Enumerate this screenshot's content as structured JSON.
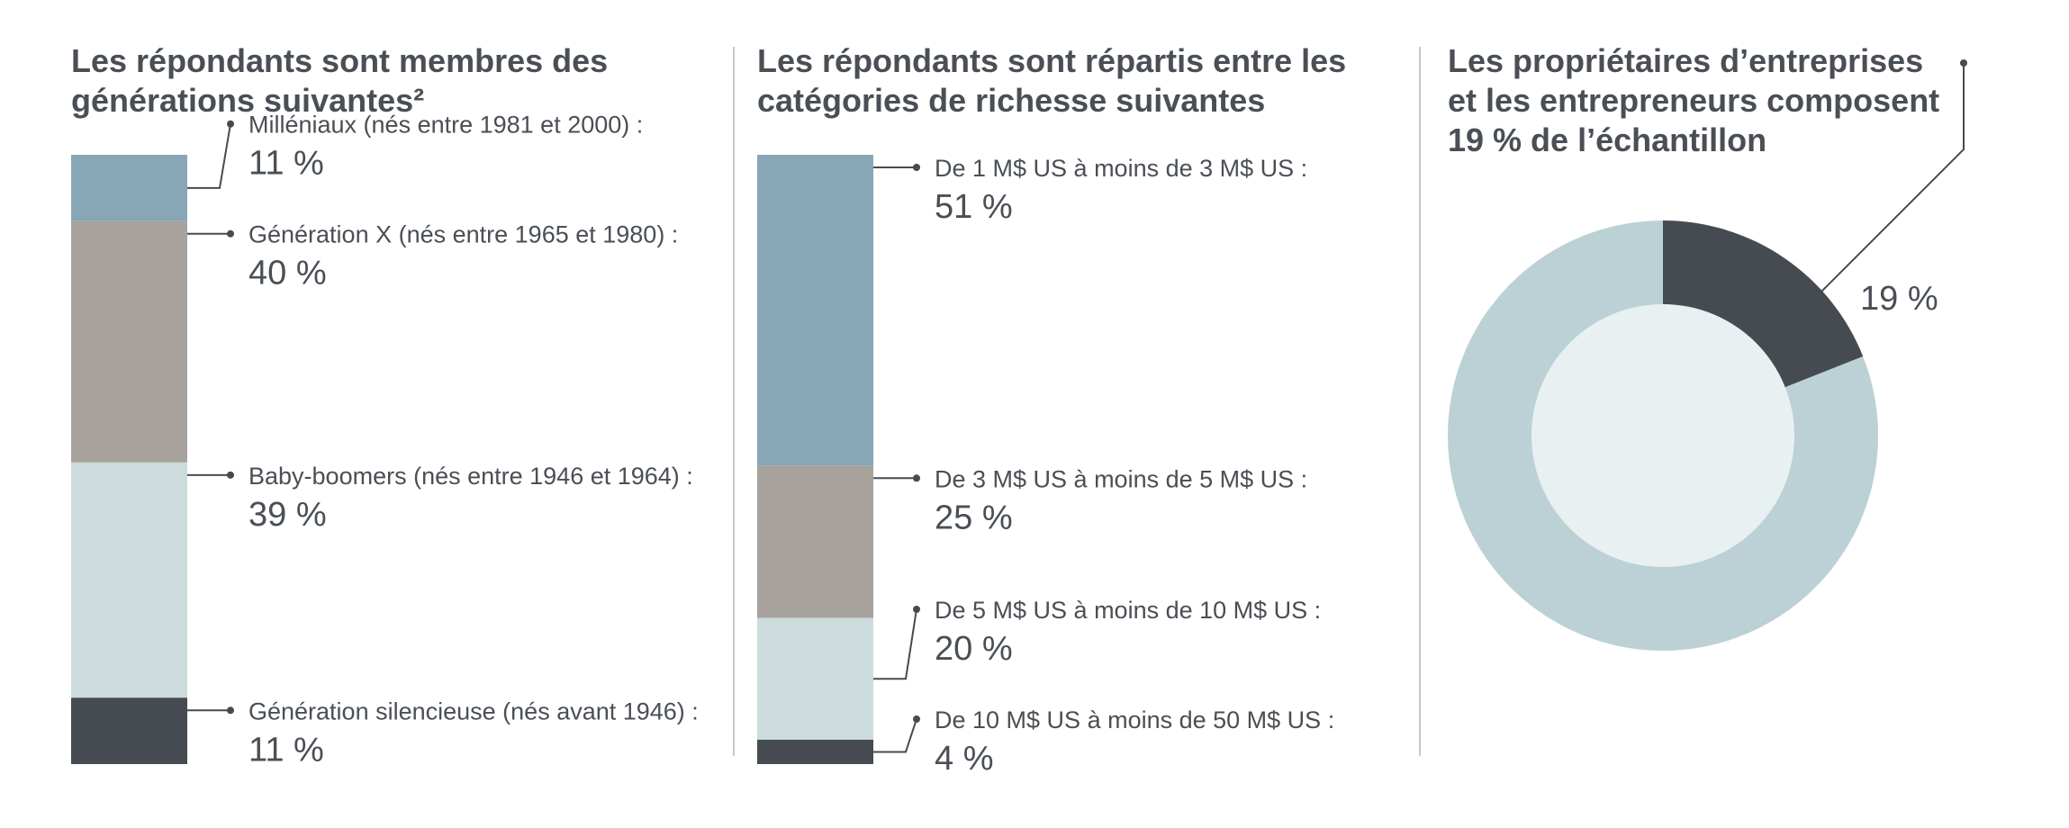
{
  "chart_data": [
    {
      "type": "stacked-bar",
      "title": "Les répondants sont membres des générations suivantes²",
      "categories": [
        "Milléniaux (nés entre 1981 et 2000) :",
        "Génération X (nés entre 1965 et 1980) :",
        "Baby-boomers (nés entre 1946 et 1964) :",
        "Génération silencieuse (nés avant 1946) :"
      ],
      "values": [
        11,
        40,
        39,
        11
      ],
      "value_labels": [
        "11 %",
        "40 %",
        "39 %",
        "11 %"
      ],
      "colors": [
        "#87a7b7",
        "#a7a29c",
        "#ccdcdc",
        "#454b51"
      ]
    },
    {
      "type": "stacked-bar",
      "title": "Les répondants sont répartis entre les catégories de richesse suivantes",
      "categories": [
        "De 1 M$ US à moins de 3 M$ US :",
        "De 3 M$ US à moins de 5 M$ US :",
        "De 5 M$ US à moins de 10 M$ US :",
        "De 10 M$ US à moins de 50 M$ US :"
      ],
      "values": [
        51,
        25,
        20,
        4
      ],
      "value_labels": [
        "51 %",
        "25 %",
        "20 %",
        "4 %"
      ],
      "colors": [
        "#87a7b7",
        "#a7a29c",
        "#ccdcdc",
        "#454b51"
      ]
    },
    {
      "type": "donut",
      "title": "Les propriétaires d’entreprises et les entrepreneurs composent 19 % de l’échantillon",
      "values": [
        19,
        81
      ],
      "value_labels": [
        "19 %",
        null
      ],
      "colors": [
        "#454b51",
        "#bcd1d5"
      ],
      "inner_color": "#e8f0f2"
    }
  ]
}
